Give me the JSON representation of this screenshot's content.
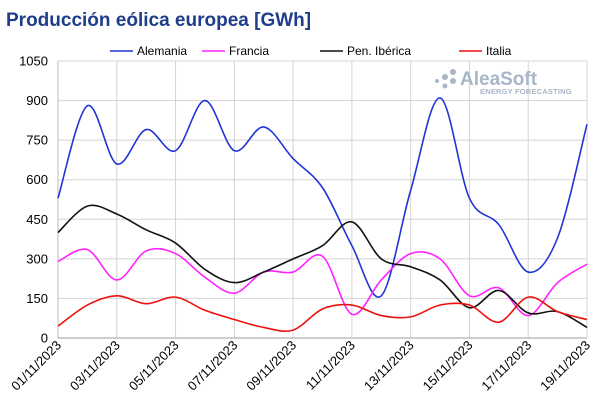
{
  "chart_data": {
    "type": "line",
    "title": "Producción eólica europea [GWh]",
    "x": [
      "01/11/2023",
      "02/11/2023",
      "03/11/2023",
      "04/11/2023",
      "05/11/2023",
      "06/11/2023",
      "07/11/2023",
      "08/11/2023",
      "09/11/2023",
      "10/11/2023",
      "11/11/2023",
      "12/11/2023",
      "13/11/2023",
      "14/11/2023",
      "15/11/2023",
      "16/11/2023",
      "17/11/2023",
      "18/11/2023",
      "19/11/2023"
    ],
    "x_tick_labels": [
      "01/11/2023",
      "03/11/2023",
      "05/11/2023",
      "07/11/2023",
      "09/11/2023",
      "11/11/2023",
      "13/11/2023",
      "15/11/2023",
      "17/11/2023",
      "19/11/2023"
    ],
    "ylim": [
      0,
      1050
    ],
    "y_ticks": [
      "0",
      "150",
      "300",
      "450",
      "600",
      "750",
      "900",
      "1050"
    ],
    "grid": true,
    "legend_position": "top",
    "series": [
      {
        "name": "Alemania",
        "color": "#1f35d6",
        "values": [
          530,
          880,
          660,
          790,
          710,
          900,
          710,
          800,
          680,
          570,
          350,
          160,
          560,
          910,
          530,
          430,
          250,
          380,
          810
        ]
      },
      {
        "name": "Francia",
        "color": "#ff22ff",
        "values": [
          290,
          335,
          220,
          330,
          320,
          230,
          170,
          250,
          250,
          310,
          90,
          220,
          320,
          300,
          160,
          190,
          85,
          210,
          280
        ]
      },
      {
        "name": "Pen. Ibérica",
        "color": "#111111",
        "values": [
          400,
          500,
          470,
          410,
          360,
          260,
          210,
          250,
          300,
          350,
          440,
          300,
          270,
          220,
          115,
          180,
          95,
          100,
          40
        ]
      },
      {
        "name": "Italia",
        "color": "#ee1111",
        "values": [
          45,
          125,
          160,
          130,
          155,
          105,
          70,
          40,
          30,
          110,
          125,
          85,
          80,
          125,
          125,
          60,
          155,
          100,
          70
        ]
      }
    ]
  },
  "branding": {
    "logo_text": "AleaSoft",
    "logo_subtext": "ENERGY FORECASTING",
    "logo_color": "#a8b6c8"
  }
}
